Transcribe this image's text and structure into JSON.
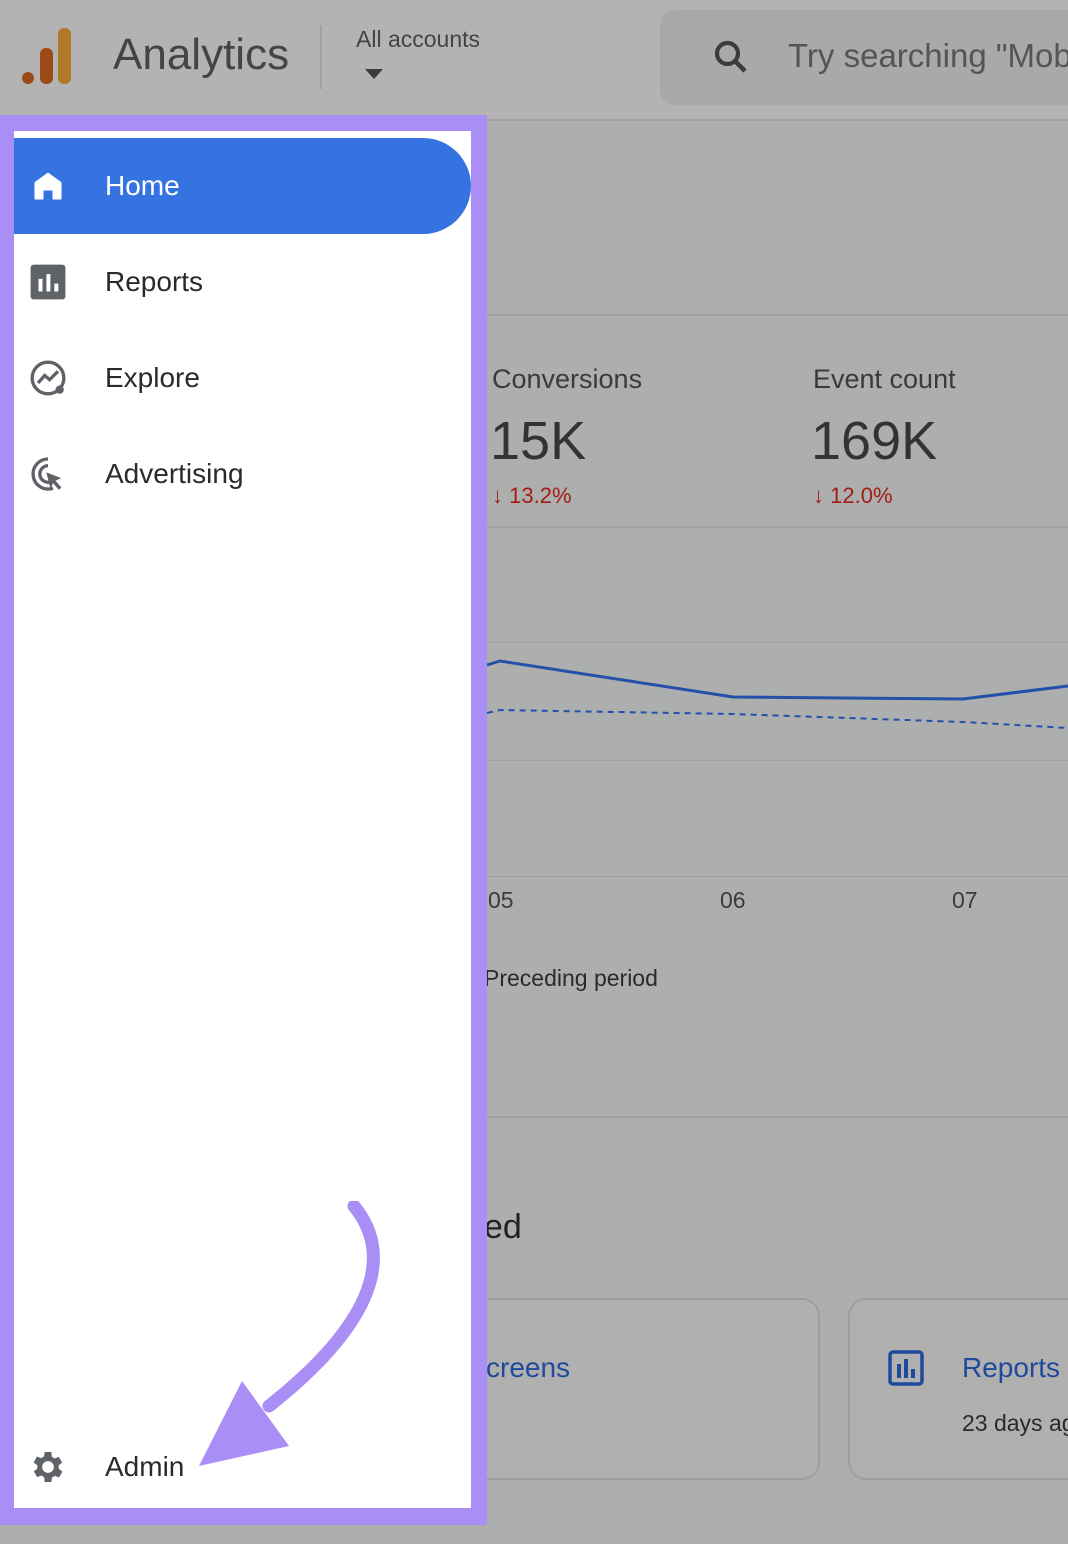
{
  "header": {
    "app_title": "Analytics",
    "account_selector": "All accounts",
    "search_placeholder": "Try searching \"Mobile"
  },
  "colors": {
    "accent": "#3574e0",
    "highlight": "#a98ef5",
    "negative": "#a31d15",
    "link": "#1f4a9c"
  },
  "metrics": [
    {
      "label": "Conversions",
      "value": "15K",
      "delta": "13.2%",
      "direction": "down"
    },
    {
      "label": "Event count",
      "value": "169K",
      "delta": "12.0%",
      "direction": "down"
    }
  ],
  "chart": {
    "x_ticks": [
      "05",
      "06",
      "07"
    ],
    "legend": "Preceding period"
  },
  "recent": {
    "heading_fragment": "ed",
    "cards": [
      {
        "title": "creens",
        "subtitle": ""
      },
      {
        "title": "Reports",
        "subtitle": "23 days ag"
      }
    ]
  },
  "sidebar": {
    "items": [
      {
        "label": "Home",
        "icon": "home-icon",
        "active": true
      },
      {
        "label": "Reports",
        "icon": "bar-chart-icon"
      },
      {
        "label": "Explore",
        "icon": "explore-icon"
      },
      {
        "label": "Advertising",
        "icon": "advertising-icon"
      }
    ],
    "admin": {
      "label": "Admin",
      "icon": "gear-icon"
    }
  }
}
